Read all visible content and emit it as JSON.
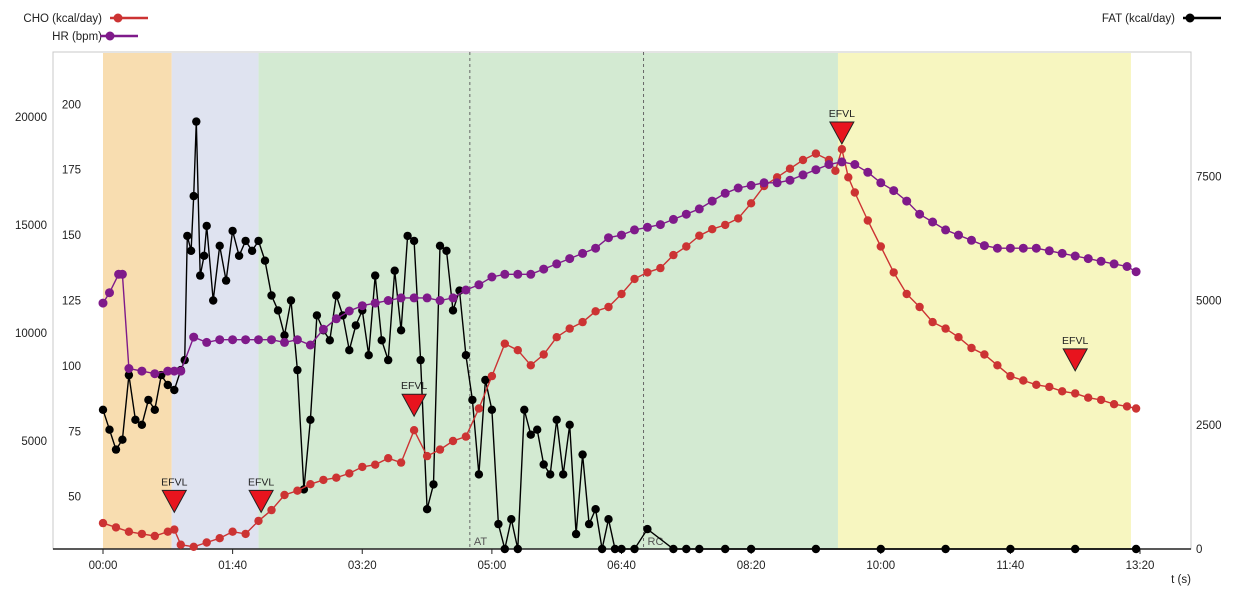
{
  "chart_data": {
    "type": "line",
    "xlabel": "t (s)",
    "x_ticks": [
      "00:00",
      "01:40",
      "03:20",
      "05:00",
      "06:40",
      "08:20",
      "10:00",
      "11:40",
      "13:20"
    ],
    "x_tick_seconds": [
      0,
      100,
      200,
      300,
      400,
      500,
      600,
      700,
      800
    ],
    "xlim": [
      0,
      800
    ],
    "y_left_outer": {
      "ticks": [
        5000,
        10000,
        15000,
        20000
      ],
      "ylim": [
        0,
        23000
      ]
    },
    "y_left_inner": {
      "ticks": [
        50,
        75,
        100,
        125,
        150,
        175,
        200
      ],
      "ylim": [
        30,
        220
      ]
    },
    "y_right": {
      "ticks": [
        0,
        2500,
        5000,
        7500
      ],
      "ylim": [
        0,
        10000
      ]
    },
    "legend": [
      {
        "name": "CHO (kcal/day)",
        "color": "#cc3333",
        "placement": "top-left"
      },
      {
        "name": "HR (bpm)",
        "color": "#7f1a8a",
        "placement": "top-left"
      },
      {
        "name": "FAT (kcal/day)",
        "color": "#000000",
        "placement": "top-right"
      }
    ],
    "phases": [
      {
        "x": [
          0,
          53
        ],
        "color": "#f8ddb0"
      },
      {
        "x": [
          53,
          120
        ],
        "color": "#dfe3f0"
      },
      {
        "x": [
          120,
          567
        ],
        "color": "#d3ead2"
      },
      {
        "x": [
          567,
          793
        ],
        "color": "#f7f6c0"
      }
    ],
    "thresholds": [
      {
        "label": "AT",
        "x": 283
      },
      {
        "label": "RC",
        "x": 417
      }
    ],
    "markers": [
      {
        "label": "EFVL",
        "x": 55,
        "y": 2250
      },
      {
        "label": "EFVL",
        "x": 122,
        "y": 2250
      },
      {
        "label": "EFVL",
        "x": 240,
        "y": 6700
      },
      {
        "label": "EFVL",
        "x": 570,
        "y": 19300
      },
      {
        "label": "EFVL",
        "x": 750,
        "y": 8800
      }
    ],
    "series": [
      {
        "name": "CHO (kcal/day)",
        "axis": "left_outer",
        "color": "#cc3333",
        "x": [
          0,
          10,
          20,
          30,
          40,
          50,
          55,
          60,
          70,
          80,
          90,
          100,
          110,
          120,
          130,
          140,
          150,
          160,
          170,
          180,
          190,
          200,
          210,
          220,
          230,
          240,
          250,
          260,
          270,
          280,
          290,
          300,
          310,
          320,
          330,
          340,
          350,
          360,
          370,
          380,
          390,
          400,
          410,
          420,
          430,
          440,
          450,
          460,
          470,
          480,
          490,
          500,
          510,
          520,
          530,
          540,
          550,
          560,
          565,
          570,
          575,
          580,
          590,
          600,
          610,
          620,
          630,
          640,
          650,
          660,
          670,
          680,
          690,
          700,
          710,
          720,
          730,
          740,
          750,
          760,
          770,
          780,
          790,
          797
        ],
        "y": [
          1200,
          1000,
          800,
          700,
          600,
          800,
          900,
          200,
          100,
          300,
          500,
          800,
          700,
          1300,
          1800,
          2500,
          2700,
          3000,
          3200,
          3300,
          3500,
          3800,
          3900,
          4200,
          4000,
          5500,
          4300,
          4600,
          5000,
          5200,
          6500,
          8000,
          9500,
          9200,
          8500,
          9000,
          9800,
          10200,
          10500,
          11000,
          11200,
          11800,
          12500,
          12800,
          13000,
          13600,
          14000,
          14500,
          14800,
          15000,
          15300,
          16000,
          16800,
          17200,
          17600,
          18000,
          18300,
          18000,
          17500,
          18500,
          17200,
          16500,
          15200,
          14000,
          12800,
          11800,
          11200,
          10500,
          10200,
          9800,
          9300,
          9000,
          8500,
          8000,
          7800,
          7600,
          7500,
          7300,
          7200,
          7000,
          6900,
          6700,
          6600,
          6500
        ]
      },
      {
        "name": "HR (bpm)",
        "axis": "left_inner",
        "color": "#7f1a8a",
        "x": [
          0,
          5,
          12,
          15,
          20,
          30,
          40,
          50,
          55,
          60,
          70,
          80,
          90,
          100,
          110,
          120,
          130,
          140,
          150,
          160,
          170,
          180,
          190,
          200,
          210,
          220,
          230,
          240,
          250,
          260,
          270,
          280,
          290,
          300,
          310,
          320,
          330,
          340,
          350,
          360,
          370,
          380,
          390,
          400,
          410,
          420,
          430,
          440,
          450,
          460,
          470,
          480,
          490,
          500,
          510,
          520,
          530,
          540,
          550,
          560,
          570,
          580,
          590,
          600,
          610,
          620,
          630,
          640,
          650,
          660,
          670,
          680,
          690,
          700,
          710,
          720,
          730,
          740,
          750,
          760,
          770,
          780,
          790,
          797
        ],
        "y": [
          124,
          128,
          135,
          135,
          99,
          98,
          97,
          98,
          98,
          98,
          111,
          109,
          110,
          110,
          110,
          110,
          110,
          109,
          110,
          108,
          114,
          118,
          121,
          123,
          124,
          125,
          126,
          126,
          126,
          125,
          126,
          129,
          131,
          134,
          135,
          135,
          135,
          137,
          139,
          141,
          143,
          145,
          149,
          150,
          152,
          153,
          154,
          156,
          158,
          160,
          163,
          166,
          168,
          169,
          170,
          170,
          171,
          173,
          175,
          177,
          178,
          177,
          174,
          170,
          167,
          163,
          158,
          155,
          152,
          150,
          148,
          146,
          145,
          145,
          145,
          145,
          144,
          143,
          142,
          141,
          140,
          139,
          138,
          136
        ]
      },
      {
        "name": "FAT (kcal/day)",
        "axis": "right",
        "color": "#000000",
        "x": [
          0,
          5,
          10,
          15,
          20,
          25,
          30,
          35,
          40,
          45,
          50,
          55,
          60,
          63,
          65,
          68,
          70,
          72,
          75,
          78,
          80,
          85,
          90,
          95,
          100,
          105,
          110,
          115,
          120,
          125,
          130,
          135,
          140,
          145,
          150,
          155,
          160,
          165,
          170,
          175,
          180,
          185,
          190,
          195,
          200,
          205,
          210,
          215,
          220,
          225,
          230,
          235,
          240,
          245,
          250,
          255,
          260,
          265,
          270,
          275,
          280,
          285,
          290,
          295,
          300,
          305,
          310,
          315,
          320,
          325,
          330,
          335,
          340,
          345,
          350,
          355,
          360,
          365,
          370,
          375,
          380,
          385,
          390,
          395,
          400,
          410,
          420,
          440,
          450,
          460,
          480,
          500,
          550,
          600,
          650,
          700,
          750,
          797
        ],
        "y": [
          2800,
          2400,
          2000,
          2200,
          3500,
          2600,
          2500,
          3000,
          2800,
          3500,
          3300,
          3200,
          3600,
          3800,
          6300,
          6000,
          7100,
          8600,
          5500,
          5900,
          6500,
          5000,
          6100,
          5400,
          6400,
          5900,
          6200,
          6000,
          6200,
          5800,
          5100,
          4800,
          4300,
          5000,
          3600,
          1200,
          2600,
          4700,
          4400,
          4200,
          5100,
          4700,
          4000,
          4500,
          4800,
          3900,
          5500,
          4200,
          3800,
          5600,
          4400,
          6300,
          6200,
          3800,
          800,
          1300,
          6100,
          6000,
          4800,
          5200,
          3900,
          3000,
          1500,
          3400,
          2800,
          500,
          0,
          600,
          0,
          2800,
          2300,
          2400,
          1700,
          1500,
          2600,
          1500,
          2500,
          300,
          1900,
          500,
          800,
          0,
          600,
          0,
          0,
          0,
          400,
          0,
          0,
          0,
          0,
          0,
          0,
          0,
          0,
          0,
          0,
          0
        ]
      }
    ]
  }
}
